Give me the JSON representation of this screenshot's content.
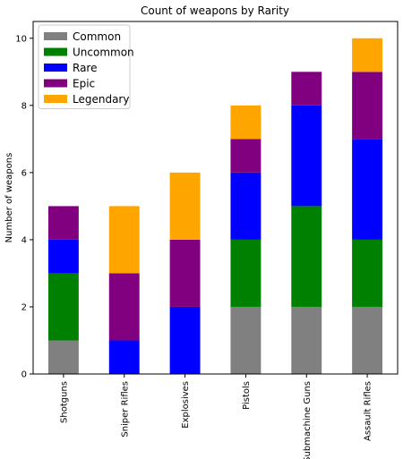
{
  "chart_data": {
    "type": "bar",
    "stacked": true,
    "title": "Count of weapons by Rarity",
    "xlabel": "",
    "ylabel": "Number of weapons",
    "ylim": [
      0,
      10.5
    ],
    "yticks": [
      0,
      2,
      4,
      6,
      8,
      10
    ],
    "grid": false,
    "legend_position": "top-left",
    "categories": [
      "Shotguns",
      "Sniper Rifles",
      "Explosives",
      "Pistols",
      "Submachine Guns",
      "Assault Rifles"
    ],
    "series": [
      {
        "name": "Common",
        "color": "#808080",
        "values": [
          1,
          0,
          0,
          2,
          2,
          2
        ]
      },
      {
        "name": "Uncommon",
        "color": "#008000",
        "values": [
          2,
          0,
          0,
          2,
          3,
          2
        ]
      },
      {
        "name": "Rare",
        "color": "#0000ff",
        "values": [
          1,
          1,
          2,
          2,
          3,
          3
        ]
      },
      {
        "name": "Epic",
        "color": "#800080",
        "values": [
          1,
          2,
          2,
          1,
          1,
          2
        ]
      },
      {
        "name": "Legendary",
        "color": "#ffa500",
        "values": [
          0,
          2,
          2,
          1,
          0,
          1
        ]
      }
    ]
  }
}
